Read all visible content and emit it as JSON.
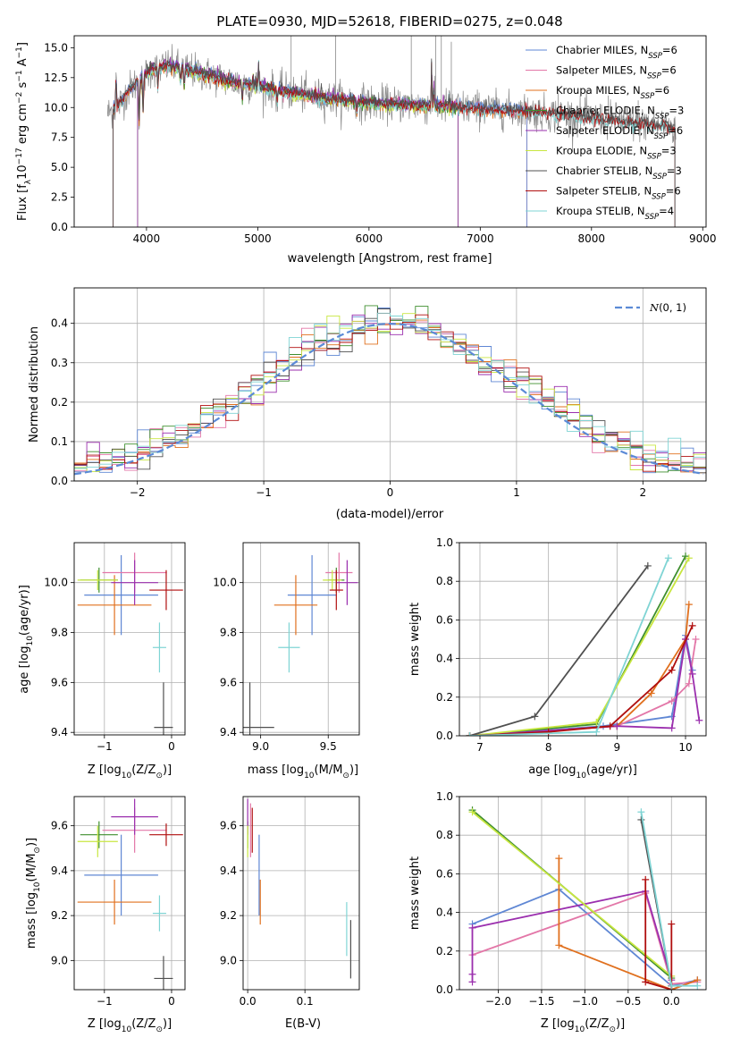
{
  "figure_title": "PLATE=0930, MJD=52618, FIBERID=0275, z=0.048",
  "colors": {
    "Chabrier MILES": "#5f87d4",
    "Salpeter MILES": "#e377a8",
    "Kroupa MILES": "#e0701e",
    "Chabrier ELODIE": "#3f8f2f",
    "Salpeter ELODIE": "#9b2fae",
    "Kroupa ELODIE": "#c8e640",
    "Chabrier STELIB": "#505050",
    "Salpeter STELIB": "#b00f0f",
    "Kroupa STELIB": "#7fd4d4",
    "data": "#8a8a8a",
    "normal": "#5b8ad6"
  },
  "chart_data": [
    {
      "id": "spectrum",
      "type": "line",
      "title": "PLATE=0930, MJD=52618, FIBERID=0275, z=0.048",
      "xlabel": "wavelength [Angstrom, rest frame]",
      "ylabel": "Flux [f",
      "ylabel_sub": "λ",
      "ylabel_rest": "10",
      "ylabel_exp1": "−17",
      "ylabel_mid": " erg cm",
      "ylabel_exp2": "−2",
      "ylabel_mid2": " s",
      "ylabel_exp3": "−1",
      "ylabel_end": " A",
      "ylabel_exp4": "−1",
      "ylabel_close": "]",
      "xlim": [
        3350,
        9030
      ],
      "ylim": [
        0,
        16
      ],
      "xticks": [
        4000,
        5000,
        6000,
        7000,
        8000,
        9000
      ],
      "yticks": [
        0.0,
        2.5,
        5.0,
        7.5,
        10.0,
        12.5,
        15.0
      ],
      "grid": false,
      "legend_position": "top-right",
      "legend": [
        {
          "label": "Chabrier MILES, N",
          "sub": "SSP",
          "suffix": "=6"
        },
        {
          "label": "Salpeter MILES, N",
          "sub": "SSP",
          "suffix": "=6"
        },
        {
          "label": "Kroupa MILES, N",
          "sub": "SSP",
          "suffix": "=6"
        },
        {
          "label": "Chabrier ELODIE, N",
          "sub": "SSP",
          "suffix": "=3"
        },
        {
          "label": "Salpeter ELODIE, N",
          "sub": "SSP",
          "suffix": "=6"
        },
        {
          "label": "Kroupa ELODIE, N",
          "sub": "SSP",
          "suffix": "=3"
        },
        {
          "label": "Chabrier STELIB, N",
          "sub": "SSP",
          "suffix": "=3"
        },
        {
          "label": "Salpeter STELIB, N",
          "sub": "SSP",
          "suffix": "=6"
        },
        {
          "label": "Kroupa STELIB, N",
          "sub": "SSP",
          "suffix": "=4"
        }
      ],
      "continuum": {
        "wavelength": [
          3650,
          3750,
          3850,
          3950,
          4050,
          4200,
          4400,
          4600,
          4800,
          5000,
          5200,
          5400,
          5600,
          5800,
          6000,
          6200,
          6400,
          6600,
          6800,
          7000,
          7200,
          7400,
          7600,
          7800,
          8000,
          8200,
          8400,
          8600,
          8750
        ],
        "flux": [
          9.5,
          10.2,
          11.6,
          12.4,
          13.2,
          13.5,
          13.1,
          12.6,
          12.1,
          11.8,
          11.4,
          11.1,
          10.8,
          10.6,
          10.4,
          10.3,
          10.2,
          10.1,
          10.0,
          9.9,
          9.8,
          9.7,
          9.5,
          9.3,
          9.1,
          8.9,
          8.7,
          8.5,
          8.3
        ]
      },
      "model_cutoffs": [
        {
          "series": "Kroupa MILES",
          "start": 3700,
          "end": 7420
        },
        {
          "series": "Salpeter MILES",
          "start": 3700,
          "end": 7420
        },
        {
          "series": "Chabrier MILES",
          "start": 3700,
          "end": 7420
        },
        {
          "series": "Kroupa ELODIE",
          "start": 3920,
          "end": 6800
        },
        {
          "series": "Chabrier ELODIE",
          "start": 3920,
          "end": 6800
        },
        {
          "series": "Salpeter ELODIE",
          "start": 3920,
          "end": 6800
        },
        {
          "series": "Kroupa STELIB",
          "start": 3700,
          "end": 8750
        },
        {
          "series": "Salpeter STELIB",
          "start": 3700,
          "end": 8750
        },
        {
          "series": "Chabrier STELIB",
          "start": 3700,
          "end": 8750
        }
      ]
    },
    {
      "id": "residuals",
      "type": "histogram",
      "xlabel": "(data-model)/error",
      "ylabel": "Normed distribution",
      "xlim": [
        -2.5,
        2.5
      ],
      "ylim": [
        0,
        0.49
      ],
      "xticks": [
        -2,
        -1,
        0,
        1,
        2
      ],
      "yticks": [
        0.0,
        0.1,
        0.2,
        0.3,
        0.4
      ],
      "grid": true,
      "legend_position": "top-right",
      "legend": [
        "N(0,1)"
      ],
      "bin_width": 0.1
    },
    {
      "id": "age_vs_Z",
      "type": "errorbar",
      "xlabel": "Z [log",
      "xlabel_sub": "10",
      "xlabel_rest": "(Z/Z",
      "xlabel_sun": "⊙",
      "xlabel_end": ")]",
      "ylabel": "age  [log",
      "ylabel_sub": "10",
      "ylabel_rest": "(age/yr)]",
      "xlim": [
        -1.45,
        0.2
      ],
      "ylim": [
        9.39,
        10.16
      ],
      "xticks": [
        -1,
        0
      ],
      "yticks": [
        9.4,
        9.6,
        9.8,
        10.0
      ],
      "grid": true,
      "points": [
        {
          "series": "Chabrier MILES",
          "x": -0.75,
          "xerr": 0.55,
          "y": 9.95,
          "yerr": 0.16
        },
        {
          "series": "Salpeter MILES",
          "x": -0.55,
          "xerr": 0.48,
          "y": 10.04,
          "yerr": 0.08
        },
        {
          "series": "Kroupa MILES",
          "x": -0.85,
          "xerr": 0.55,
          "y": 9.91,
          "yerr": 0.12
        },
        {
          "series": "Chabrier ELODIE",
          "x": -1.08,
          "xerr": 0.28,
          "y": 10.01,
          "yerr": 0.05
        },
        {
          "series": "Salpeter ELODIE",
          "x": -0.55,
          "xerr": 0.35,
          "y": 10.0,
          "yerr": 0.09
        },
        {
          "series": "Kroupa ELODIE",
          "x": -1.1,
          "xerr": 0.3,
          "y": 10.01,
          "yerr": 0.04
        },
        {
          "series": "Chabrier STELIB",
          "x": -0.12,
          "xerr": 0.14,
          "y": 9.42,
          "yerr": 0.18
        },
        {
          "series": "Salpeter STELIB",
          "x": -0.08,
          "xerr": 0.25,
          "y": 9.97,
          "yerr": 0.08
        },
        {
          "series": "Kroupa STELIB",
          "x": -0.18,
          "xerr": 0.1,
          "y": 9.74,
          "yerr": 0.1
        }
      ]
    },
    {
      "id": "age_vs_mass",
      "type": "errorbar",
      "xlabel": "mass [log",
      "xlabel_sub": "10",
      "xlabel_rest": "(M/M",
      "xlabel_sun": "⊙",
      "xlabel_end": ")]",
      "xlim": [
        8.87,
        9.73
      ],
      "ylim": [
        9.39,
        10.16
      ],
      "xticks": [
        9.0,
        9.5
      ],
      "yticks": [
        9.4,
        9.6,
        9.8,
        10.0
      ],
      "grid": true,
      "points": [
        {
          "series": "Chabrier MILES",
          "x": 9.38,
          "xerr": 0.18,
          "y": 9.95,
          "yerr": 0.16
        },
        {
          "series": "Salpeter MILES",
          "x": 9.58,
          "xerr": 0.1,
          "y": 10.04,
          "yerr": 0.08
        },
        {
          "series": "Kroupa MILES",
          "x": 9.26,
          "xerr": 0.16,
          "y": 9.91,
          "yerr": 0.12
        },
        {
          "series": "Chabrier ELODIE",
          "x": 9.56,
          "xerr": 0.06,
          "y": 10.01,
          "yerr": 0.05
        },
        {
          "series": "Salpeter ELODIE",
          "x": 9.64,
          "xerr": 0.08,
          "y": 10.0,
          "yerr": 0.09
        },
        {
          "series": "Kroupa ELODIE",
          "x": 9.53,
          "xerr": 0.07,
          "y": 10.01,
          "yerr": 0.04
        },
        {
          "series": "Chabrier STELIB",
          "x": 8.92,
          "xerr": 0.18,
          "y": 9.42,
          "yerr": 0.18
        },
        {
          "series": "Salpeter STELIB",
          "x": 9.56,
          "xerr": 0.05,
          "y": 9.97,
          "yerr": 0.08
        },
        {
          "series": "Kroupa STELIB",
          "x": 9.21,
          "xerr": 0.08,
          "y": 9.74,
          "yerr": 0.1
        }
      ]
    },
    {
      "id": "weight_vs_age",
      "type": "line",
      "xlabel": "age  [log",
      "xlabel_sub": "10",
      "xlabel_rest": "(age/yr)]",
      "ylabel": "mass weight",
      "xlim": [
        6.7,
        10.3
      ],
      "ylim": [
        0,
        1.0
      ],
      "xticks": [
        7,
        8,
        9,
        10
      ],
      "yticks": [
        0.0,
        0.2,
        0.4,
        0.6,
        0.8,
        1.0
      ],
      "grid": true,
      "series": [
        {
          "name": "Chabrier MILES",
          "x": [
            6.85,
            8.8,
            9.8,
            10.0,
            10.1
          ],
          "y": [
            0.0,
            0.05,
            0.1,
            0.52,
            0.34
          ]
        },
        {
          "name": "Salpeter MILES",
          "x": [
            6.85,
            9.0,
            9.8,
            10.05,
            10.15
          ],
          "y": [
            0.0,
            0.05,
            0.18,
            0.27,
            0.5
          ]
        },
        {
          "name": "Kroupa MILES",
          "x": [
            6.85,
            9.0,
            9.5,
            10.0,
            10.05
          ],
          "y": [
            0.0,
            0.05,
            0.22,
            0.5,
            0.68
          ]
        },
        {
          "name": "Chabrier ELODIE",
          "x": [
            6.85,
            8.7,
            10.0
          ],
          "y": [
            0.0,
            0.06,
            0.93
          ]
        },
        {
          "name": "Salpeter ELODIE",
          "x": [
            6.85,
            9.0,
            9.8,
            10.0,
            10.1,
            10.2
          ],
          "y": [
            0.0,
            0.05,
            0.04,
            0.5,
            0.32,
            0.08
          ]
        },
        {
          "name": "Kroupa ELODIE",
          "x": [
            6.85,
            8.7,
            10.05
          ],
          "y": [
            0.0,
            0.07,
            0.92
          ]
        },
        {
          "name": "Chabrier STELIB",
          "x": [
            6.85,
            7.8,
            9.45
          ],
          "y": [
            0.0,
            0.1,
            0.88
          ]
        },
        {
          "name": "Salpeter STELIB",
          "x": [
            6.85,
            8.0,
            8.9,
            9.8,
            10.1
          ],
          "y": [
            0.0,
            0.02,
            0.05,
            0.34,
            0.57
          ]
        },
        {
          "name": "Kroupa STELIB",
          "x": [
            6.85,
            8.7,
            9.75
          ],
          "y": [
            0.0,
            0.02,
            0.92
          ]
        }
      ]
    },
    {
      "id": "mass_vs_Z",
      "type": "errorbar",
      "xlabel": "Z [log",
      "xlabel_sub": "10",
      "xlabel_rest": "(Z/Z",
      "xlabel_sun": "⊙",
      "xlabel_end": ")]",
      "ylabel": "mass [log",
      "ylabel_sub": "10",
      "ylabel_rest": "(M/M",
      "ylabel_sun": "⊙",
      "ylabel_end": ")]",
      "xlim": [
        -1.45,
        0.2
      ],
      "ylim": [
        8.87,
        9.73
      ],
      "xticks": [
        -1,
        0
      ],
      "yticks": [
        9.0,
        9.2,
        9.4,
        9.6
      ],
      "grid": true,
      "points": [
        {
          "series": "Chabrier MILES",
          "x": -0.75,
          "xerr": 0.55,
          "y": 9.38,
          "yerr": 0.18
        },
        {
          "series": "Salpeter MILES",
          "x": -0.55,
          "xerr": 0.48,
          "y": 9.58,
          "yerr": 0.1
        },
        {
          "series": "Kroupa MILES",
          "x": -0.85,
          "xerr": 0.55,
          "y": 9.26,
          "yerr": 0.1
        },
        {
          "series": "Chabrier ELODIE",
          "x": -1.08,
          "xerr": 0.28,
          "y": 9.56,
          "yerr": 0.06
        },
        {
          "series": "Salpeter ELODIE",
          "x": -0.55,
          "xerr": 0.35,
          "y": 9.64,
          "yerr": 0.08
        },
        {
          "series": "Kroupa ELODIE",
          "x": -1.1,
          "xerr": 0.3,
          "y": 9.53,
          "yerr": 0.07
        },
        {
          "series": "Chabrier STELIB",
          "x": -0.12,
          "xerr": 0.14,
          "y": 8.92,
          "yerr": 0.1
        },
        {
          "series": "Salpeter STELIB",
          "x": -0.08,
          "xerr": 0.25,
          "y": 9.56,
          "yerr": 0.05
        },
        {
          "series": "Kroupa STELIB",
          "x": -0.18,
          "xerr": 0.1,
          "y": 9.21,
          "yerr": 0.08
        }
      ]
    },
    {
      "id": "mass_vs_ebv",
      "type": "errorbar",
      "xlabel": "E(B-V)",
      "xlim": [
        -0.008,
        0.195
      ],
      "ylim": [
        8.87,
        9.73
      ],
      "xticks": [
        0.0,
        0.1
      ],
      "yticks": [
        9.0,
        9.2,
        9.4,
        9.6
      ],
      "grid": true,
      "points": [
        {
          "series": "Chabrier MILES",
          "x": 0.02,
          "xerr": 0.0,
          "y": 9.38,
          "yerr": 0.18
        },
        {
          "series": "Salpeter MILES",
          "x": 0.005,
          "xerr": 0.0,
          "y": 9.58,
          "yerr": 0.12
        },
        {
          "series": "Kroupa MILES",
          "x": 0.022,
          "xerr": 0.0,
          "y": 9.26,
          "yerr": 0.1
        },
        {
          "series": "Chabrier ELODIE",
          "x": 0.0,
          "xerr": 0.0,
          "y": 9.56,
          "yerr": 0.06
        },
        {
          "series": "Salpeter ELODIE",
          "x": 0.0,
          "xerr": 0.0,
          "y": 9.64,
          "yerr": 0.08
        },
        {
          "series": "Kroupa ELODIE",
          "x": 0.0,
          "xerr": 0.0,
          "y": 9.53,
          "yerr": 0.07
        },
        {
          "series": "Chabrier STELIB",
          "x": 0.18,
          "xerr": 0.0,
          "y": 9.05,
          "yerr": 0.13
        },
        {
          "series": "Salpeter STELIB",
          "x": 0.008,
          "xerr": 0.0,
          "y": 9.58,
          "yerr": 0.1
        },
        {
          "series": "Kroupa STELIB",
          "x": 0.173,
          "xerr": 0.0,
          "y": 9.14,
          "yerr": 0.12
        }
      ]
    },
    {
      "id": "weight_vs_Z",
      "type": "line",
      "xlabel": "Z [log",
      "xlabel_sub": "10",
      "xlabel_rest": "(Z/Z",
      "xlabel_sun": "⊙",
      "xlabel_end": ")]",
      "ylabel": "mass weight",
      "xlim": [
        -2.45,
        0.4
      ],
      "ylim": [
        0,
        1.0
      ],
      "xticks": [
        -2.0,
        -1.5,
        -1.0,
        -0.5,
        0.0
      ],
      "yticks": [
        0.0,
        0.2,
        0.4,
        0.6,
        0.8,
        1.0
      ],
      "grid": true,
      "series": [
        {
          "name": "Chabrier MILES",
          "x": [
            -2.3,
            -1.3,
            0.0,
            0.3,
            0.0
          ],
          "y": [
            0.34,
            0.52,
            0.02,
            0.05,
            0.0
          ]
        },
        {
          "name": "Salpeter MILES",
          "x": [
            -2.3,
            -0.3,
            0.0,
            0.3
          ],
          "y": [
            0.18,
            0.5,
            0.03,
            0.04
          ]
        },
        {
          "name": "Kroupa MILES",
          "x": [
            -1.3,
            -1.3,
            0.0,
            0.3
          ],
          "y": [
            0.68,
            0.23,
            0.0,
            0.05
          ]
        },
        {
          "name": "Chabrier ELODIE",
          "x": [
            -2.3,
            0.0
          ],
          "y": [
            0.93,
            0.06
          ]
        },
        {
          "name": "Salpeter ELODIE",
          "x": [
            -2.3,
            -2.3,
            -2.3,
            -0.3,
            0.0
          ],
          "y": [
            0.04,
            0.08,
            0.32,
            0.51,
            0.05
          ]
        },
        {
          "name": "Kroupa ELODIE",
          "x": [
            -2.3,
            0.0
          ],
          "y": [
            0.92,
            0.07
          ]
        },
        {
          "name": "Chabrier STELIB",
          "x": [
            -0.35,
            0.0
          ],
          "y": [
            0.88,
            0.02
          ]
        },
        {
          "name": "Salpeter STELIB",
          "x": [
            -0.3,
            -0.3,
            0.0,
            0.0,
            0.0
          ],
          "y": [
            0.57,
            0.04,
            0.0,
            0.34,
            0.02
          ]
        },
        {
          "name": "Kroupa STELIB",
          "x": [
            -0.35,
            0.0,
            0.3
          ],
          "y": [
            0.92,
            0.02,
            0.02
          ]
        }
      ]
    }
  ]
}
